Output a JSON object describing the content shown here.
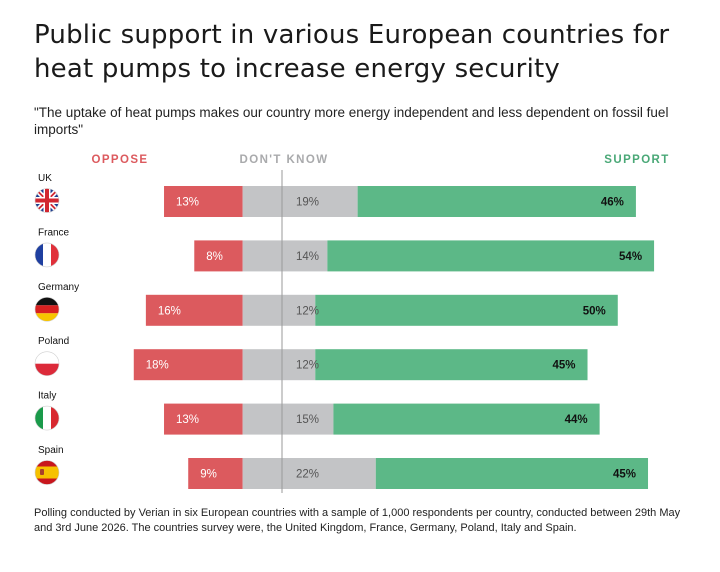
{
  "title": "Public support in various European countries for heat pumps to increase energy security",
  "subtitle": "\"The uptake of heat pumps makes our country more energy independent and less dependent on fossil fuel imports\"",
  "footnote": "Polling conducted by Verian in six European countries with a sample of 1,000 respondents per country, conducted between 29th May and 3rd June 2026. The countries survey were, the United Kingdom, France, Germany, Poland, Italy and Spain.",
  "colors": {
    "oppose": "#dc5a5e",
    "dont_know": "#c3c4c6",
    "support": "#5cb887",
    "oppose_text": "#dc5a5e",
    "dk_text": "#a9aaac",
    "support_text": "#4aa877"
  },
  "chart_data": {
    "type": "bar",
    "orientation": "horizontal",
    "stacked": "diverging",
    "legend_headers": [
      "OPPOSE",
      "DON'T KNOW",
      "SUPPORT"
    ],
    "categories": [
      "UK",
      "France",
      "Germany",
      "Poland",
      "Italy",
      "Spain"
    ],
    "flags": [
      "uk-flag-icon",
      "france-flag-icon",
      "germany-flag-icon",
      "poland-flag-icon",
      "italy-flag-icon",
      "spain-flag-icon"
    ],
    "series": [
      {
        "name": "OPPOSE",
        "values": [
          13,
          8,
          16,
          18,
          13,
          9
        ]
      },
      {
        "name": "DON'T KNOW",
        "values": [
          19,
          14,
          12,
          12,
          15,
          22
        ]
      },
      {
        "name": "SUPPORT",
        "values": [
          46,
          54,
          50,
          45,
          44,
          45
        ]
      }
    ],
    "value_suffix": "%"
  }
}
